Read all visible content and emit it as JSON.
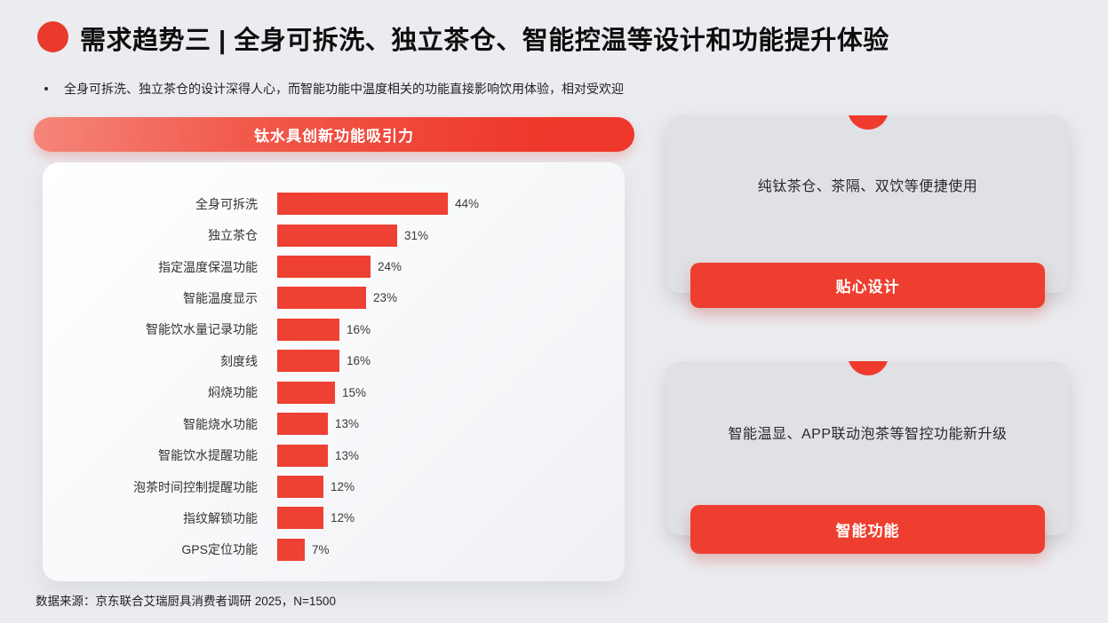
{
  "page": {
    "background": "#EBECF0",
    "accent_red": "#EE4033",
    "card_gray": "#DFE1E5"
  },
  "header": {
    "title": "需求趋势三 | 全身可拆洗、独立茶仓、智能控温等设计和功能提升体验",
    "bullet": "全身可拆洗、独立茶仓的设计深得人心，而智能功能中温度相关的功能直接影响饮用体验，相对受欢迎"
  },
  "chart_panel": {
    "banner_label": "钛水具创新功能吸引力",
    "source_note": "数据来源：京东联合艾瑞厨具消费者调研 2025，N=1500"
  },
  "chart_data": {
    "type": "bar",
    "orientation": "horizontal",
    "title": "钛水具创新功能吸引力",
    "categories": [
      "全身可拆洗",
      "独立茶仓",
      "指定温度保温功能",
      "智能温度显示",
      "智能饮水量记录功能",
      "刻度线",
      "焖烧功能",
      "智能烧水功能",
      "智能饮水提醒功能",
      "泡茶时间控制提醒功能",
      "指纹解锁功能",
      "GPS定位功能"
    ],
    "values": [
      44,
      31,
      24,
      23,
      16,
      16,
      15,
      13,
      13,
      12,
      12,
      7
    ],
    "value_suffix": "%",
    "bar_color": "#EE4033",
    "xlim": [
      0,
      48
    ],
    "grid": false,
    "legend": false
  },
  "right_cards": [
    {
      "description": "纯钛茶仓、茶隔、双饮等便捷使用",
      "button_label": "贴心设计"
    },
    {
      "description": "智能温显、APP联动泡茶等智控功能新升级",
      "button_label": "智能功能"
    }
  ]
}
